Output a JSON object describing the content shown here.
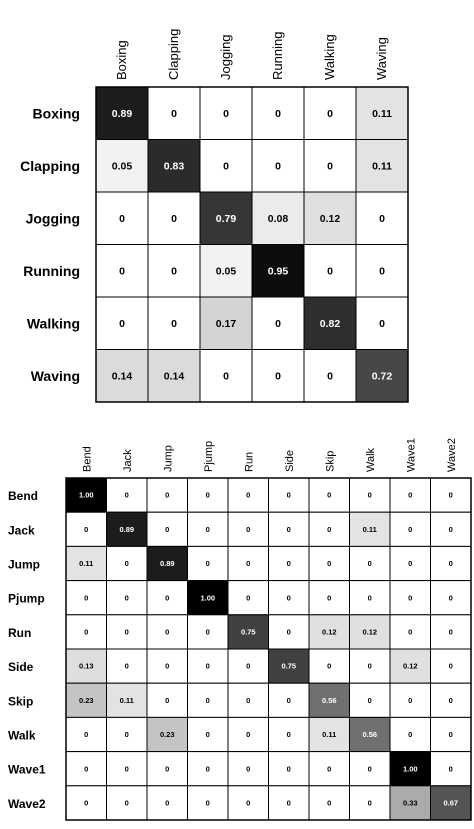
{
  "chart_data": [
    {
      "type": "heatmap",
      "categories": [
        "Boxing",
        "Clapping",
        "Jogging",
        "Running",
        "Walking",
        "Waving"
      ],
      "rows": [
        "Boxing",
        "Clapping",
        "Jogging",
        "Running",
        "Walking",
        "Waving"
      ],
      "values": [
        [
          "0.89",
          "0",
          "0",
          "0",
          "0",
          "0.11"
        ],
        [
          "0.05",
          "0.83",
          "0",
          "0",
          "0",
          "0.11"
        ],
        [
          "0",
          "0",
          "0.79",
          "0.08",
          "0.12",
          "0"
        ],
        [
          "0",
          "0",
          "0.05",
          "0.95",
          "0",
          "0"
        ],
        [
          "0",
          "0",
          "0.17",
          "0",
          "0.82",
          "0"
        ],
        [
          "0.14",
          "0.14",
          "0",
          "0",
          "0",
          "0.72"
        ]
      ]
    },
    {
      "type": "heatmap",
      "categories": [
        "Bend",
        "Jack",
        "Jump",
        "Pjump",
        "Run",
        "Side",
        "Skip",
        "Walk",
        "Wave1",
        "Wave2"
      ],
      "rows": [
        "Bend",
        "Jack",
        "Jump",
        "Pjump",
        "Run",
        "Side",
        "Skip",
        "Walk",
        "Wave1",
        "Wave2"
      ],
      "values": [
        [
          "1.00",
          "0",
          "0",
          "0",
          "0",
          "0",
          "0",
          "0",
          "0",
          "0"
        ],
        [
          "0",
          "0.89",
          "0",
          "0",
          "0",
          "0",
          "0",
          "0.11",
          "0",
          "0"
        ],
        [
          "0.11",
          "0",
          "0.89",
          "0",
          "0",
          "0",
          "0",
          "0",
          "0",
          "0"
        ],
        [
          "0",
          "0",
          "0",
          "1.00",
          "0",
          "0",
          "0",
          "0",
          "0",
          "0"
        ],
        [
          "0",
          "0",
          "0",
          "0",
          "0.75",
          "0",
          "0.12",
          "0.12",
          "0",
          "0"
        ],
        [
          "0.13",
          "0",
          "0",
          "0",
          "0",
          "0.75",
          "0",
          "0",
          "0.12",
          "0"
        ],
        [
          "0.23",
          "0.11",
          "0",
          "0",
          "0",
          "0",
          "0.56",
          "0",
          "0",
          "0"
        ],
        [
          "0",
          "0",
          "0.23",
          "0",
          "0",
          "0",
          "0.11",
          "0.56",
          "0",
          "0"
        ],
        [
          "0",
          "0",
          "0",
          "0",
          "0",
          "0",
          "0",
          "0",
          "1.00",
          "0"
        ],
        [
          "0",
          "0",
          "0",
          "0",
          "0",
          "0",
          "0",
          "0",
          "0.33",
          "0.67"
        ]
      ]
    }
  ]
}
